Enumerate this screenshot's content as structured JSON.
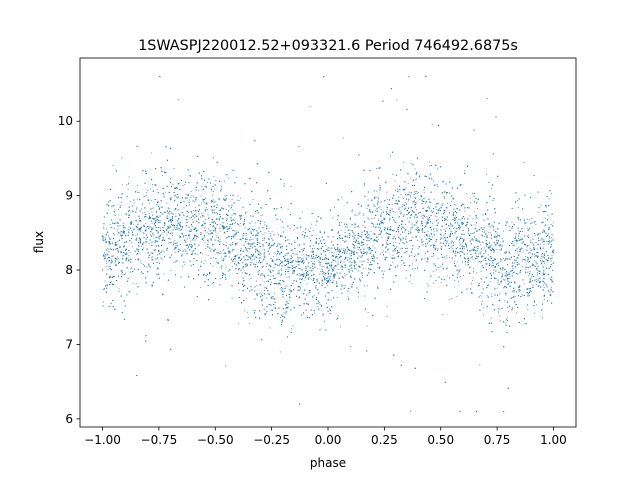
{
  "chart_data": {
    "type": "scatter",
    "title": "1SWASPJ220012.52+093321.6 Period 746492.6875s",
    "xlabel": "phase",
    "ylabel": "flux",
    "xlim": [
      -1.1,
      1.1
    ],
    "ylim": [
      5.89,
      10.85
    ],
    "xticks": [
      -1.0,
      -0.75,
      -0.5,
      -0.25,
      0.0,
      0.25,
      0.5,
      0.75,
      1.0
    ],
    "xtick_labels": [
      "−1.00",
      "−0.75",
      "−0.50",
      "−0.25",
      "0.00",
      "0.25",
      "0.50",
      "0.75",
      "1.00"
    ],
    "yticks": [
      6,
      7,
      8,
      9,
      10
    ],
    "ytick_labels": [
      "6",
      "7",
      "8",
      "9",
      "10"
    ],
    "grid": false,
    "legend": "none",
    "color": "#1f77b4",
    "series": [
      {
        "x": [
          -1.0,
          -0.9,
          -0.8,
          -0.7,
          -0.6,
          -0.5,
          -0.4,
          -0.3,
          -0.2,
          -0.1,
          0.0,
          0.1,
          0.2,
          0.3,
          0.4,
          0.5,
          0.6,
          0.7,
          0.8,
          0.9,
          1.0
        ],
        "y": [
          8.2,
          8.35,
          8.5,
          8.65,
          8.65,
          8.55,
          8.35,
          8.15,
          8.0,
          8.0,
          8.05,
          8.2,
          8.45,
          8.6,
          8.65,
          8.6,
          8.45,
          8.2,
          8.05,
          8.1,
          8.2
        ],
        "spread": [
          0.35,
          0.35,
          0.35,
          0.35,
          0.35,
          0.35,
          0.35,
          0.4,
          0.35,
          0.3,
          0.3,
          0.3,
          0.35,
          0.35,
          0.35,
          0.35,
          0.35,
          0.4,
          0.35,
          0.35,
          0.35
        ]
      }
    ],
    "flux_range": [
      6.1,
      10.6
    ]
  }
}
